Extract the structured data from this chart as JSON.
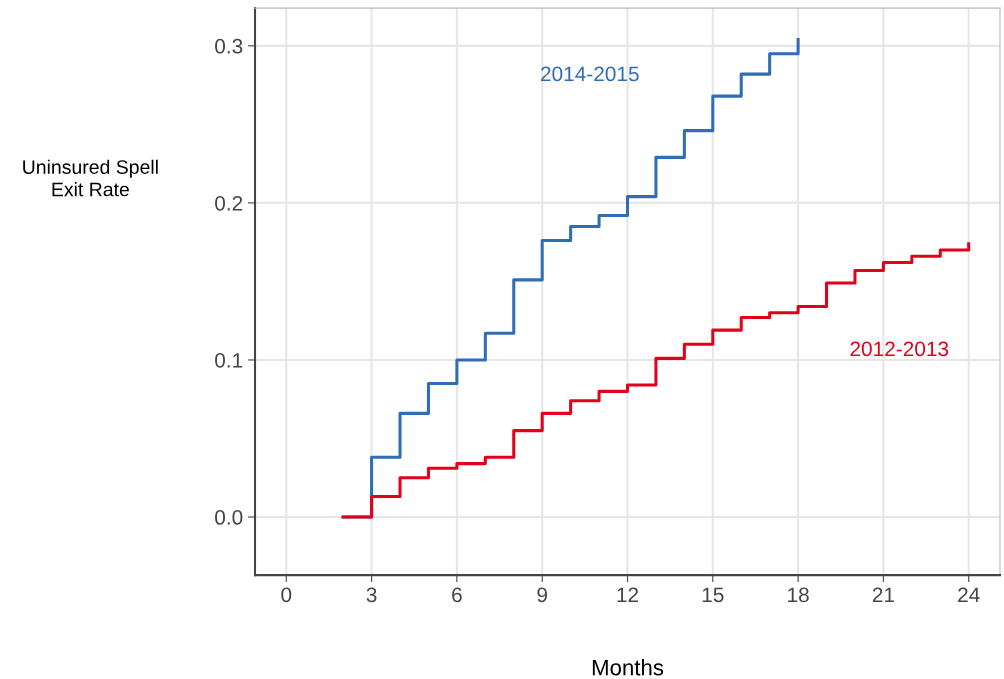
{
  "chart_data": {
    "type": "step",
    "xlabel": "Months",
    "ylabel": "Uninsured Spell\nExit Rate",
    "xlim": [
      -1.1,
      25.1
    ],
    "xticks": [
      0,
      3,
      6,
      9,
      12,
      15,
      18,
      21,
      24
    ],
    "ylim": [
      -0.037,
      0.324
    ],
    "yticks": [
      {
        "value": 0,
        "label": "0.0"
      },
      {
        "value": 0.1,
        "label": "0.1"
      },
      {
        "value": 0.2,
        "label": "0.2"
      },
      {
        "value": 0.3,
        "label": "0.3"
      }
    ],
    "grid": true,
    "legend": false,
    "series": [
      {
        "name": "2014-2015",
        "color": "#2f6db5",
        "x": [
          2,
          3,
          4,
          5,
          6,
          7,
          8,
          9,
          10,
          11,
          12,
          13,
          14,
          15,
          16,
          17,
          18
        ],
        "values": [
          0.0,
          0.038,
          0.066,
          0.085,
          0.1,
          0.117,
          0.151,
          0.176,
          0.185,
          0.192,
          0.204,
          0.229,
          0.246,
          0.268,
          0.282,
          0.295,
          0.304
        ]
      },
      {
        "name": "2012-2013",
        "color": "#e3001b",
        "x": [
          2,
          3,
          4,
          5,
          6,
          7,
          8,
          9,
          10,
          11,
          12,
          13,
          14,
          15,
          16,
          17,
          18,
          19,
          20,
          21,
          22,
          23,
          24
        ],
        "values": [
          0.0,
          0.013,
          0.025,
          0.031,
          0.034,
          0.038,
          0.055,
          0.066,
          0.074,
          0.08,
          0.084,
          0.101,
          0.11,
          0.119,
          0.127,
          0.13,
          0.134,
          0.149,
          0.157,
          0.162,
          0.166,
          0.17,
          0.174
        ]
      }
    ]
  }
}
